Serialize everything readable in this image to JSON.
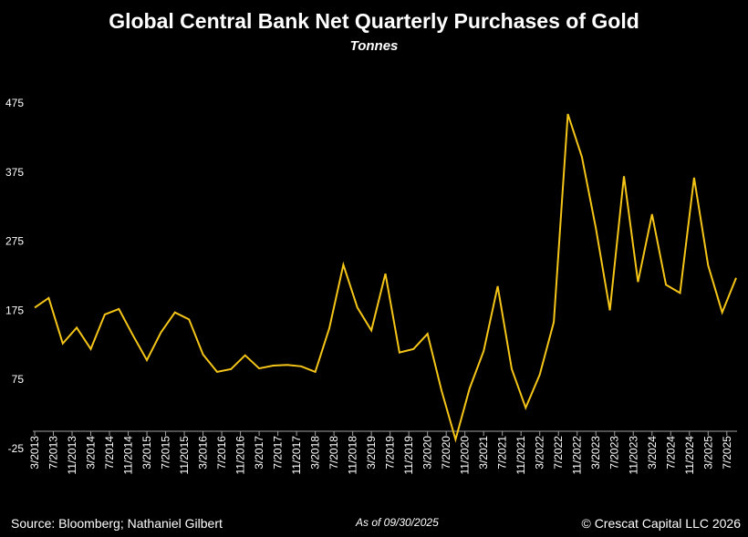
{
  "chart_data": {
    "type": "line",
    "title": "Global Central Bank Net Quarterly Purchases of Gold",
    "subtitle": "Tonnes",
    "xlabel": "",
    "ylabel": "",
    "ylim": [
      -25,
      475
    ],
    "yticks": [
      -25,
      75,
      175,
      275,
      375,
      475
    ],
    "grid": false,
    "line_color": "#f5c518",
    "xtick_labels": [
      "3/2013",
      "7/2013",
      "11/2013",
      "3/2014",
      "7/2014",
      "11/2014",
      "3/2015",
      "7/2015",
      "11/2015",
      "3/2016",
      "7/2016",
      "11/2016",
      "3/2017",
      "7/2017",
      "11/2017",
      "3/2018",
      "7/2018",
      "11/2018",
      "3/2019",
      "7/2019",
      "11/2019",
      "3/2020",
      "7/2020",
      "11/2020",
      "3/2021",
      "7/2021",
      "11/2021",
      "3/2022",
      "7/2022",
      "11/2022",
      "3/2023",
      "7/2023",
      "11/2023",
      "3/2024",
      "7/2024",
      "11/2024",
      "3/2025",
      "7/2025"
    ],
    "x": [
      "3/2013",
      "6/2013",
      "9/2013",
      "12/2013",
      "3/2014",
      "6/2014",
      "9/2014",
      "12/2014",
      "3/2015",
      "6/2015",
      "9/2015",
      "12/2015",
      "3/2016",
      "6/2016",
      "9/2016",
      "12/2016",
      "3/2017",
      "6/2017",
      "9/2017",
      "12/2017",
      "3/2018",
      "6/2018",
      "9/2018",
      "12/2018",
      "3/2019",
      "6/2019",
      "9/2019",
      "12/2019",
      "3/2020",
      "6/2020",
      "9/2020",
      "12/2020",
      "3/2021",
      "6/2021",
      "9/2021",
      "12/2021",
      "3/2022",
      "6/2022",
      "9/2022",
      "12/2022",
      "3/2023",
      "6/2023",
      "9/2023",
      "12/2023",
      "3/2024",
      "6/2024",
      "9/2024",
      "12/2024",
      "3/2025",
      "6/2025",
      "9/2025"
    ],
    "values": [
      179,
      193,
      127,
      150,
      119,
      169,
      177,
      139,
      103,
      143,
      172,
      162,
      111,
      86,
      90,
      110,
      91,
      95,
      96,
      94,
      86,
      149,
      241,
      179,
      146,
      228,
      114,
      119,
      141,
      59,
      -12,
      62,
      116,
      210,
      90,
      34,
      82,
      158,
      459,
      397,
      294,
      175,
      369,
      216,
      314,
      212,
      200,
      367,
      240,
      172,
      222
    ]
  },
  "footer": {
    "source": "Source: Bloomberg; Nathaniel Gilbert",
    "as_of": "As of 09/30/2025",
    "copyright": "© Crescat Capital LLC 2026"
  }
}
